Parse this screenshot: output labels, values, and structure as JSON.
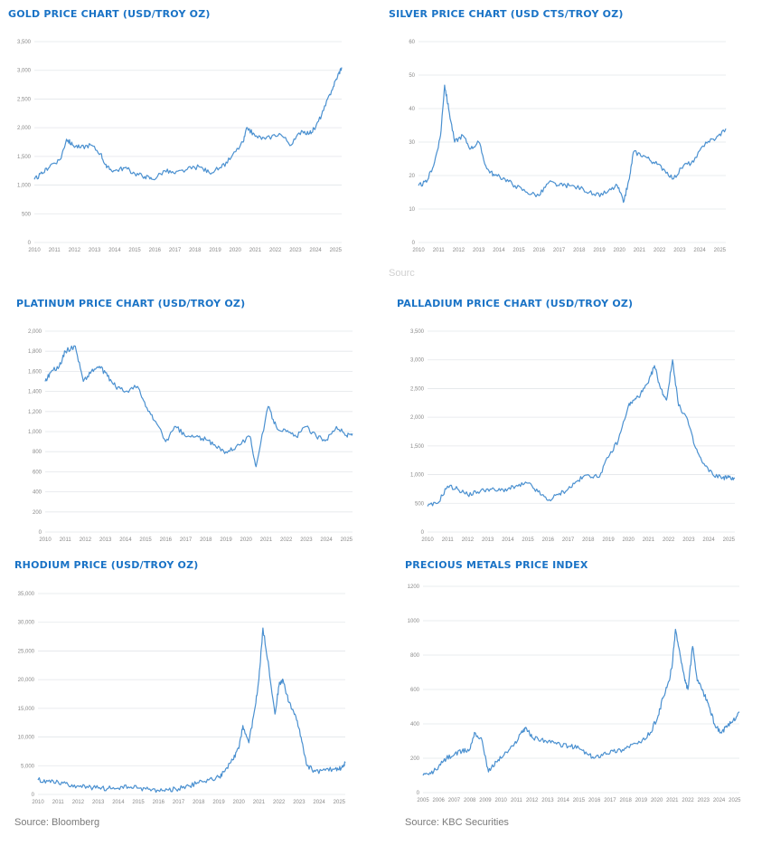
{
  "sources": {
    "left": "Source: Bloomberg",
    "right": "Source: KBC Securities",
    "faded": "Sourc"
  },
  "chart_data": [
    {
      "id": "gold",
      "type": "line",
      "title": "GOLD PRICE CHART (USD/TROY OZ)",
      "ylim": [
        0,
        3500
      ],
      "yticks": [
        0,
        500,
        1000,
        1500,
        2000,
        2500,
        3000,
        3500
      ],
      "ytick_labels": [
        "0",
        "500",
        "1,000",
        "1,500",
        "2,000",
        "2,500",
        "3,000",
        "3,500"
      ],
      "xlim": [
        2010,
        2025.3
      ],
      "xticks": [
        2010,
        2011,
        2012,
        2013,
        2014,
        2015,
        2016,
        2017,
        2018,
        2019,
        2020,
        2021,
        2022,
        2023,
        2024,
        2025
      ],
      "xtick_labels": [
        "2010",
        "2011",
        "2012",
        "2013",
        "2014",
        "2015",
        "2016",
        "2017",
        "2018",
        "2019",
        "2020",
        "2021",
        "2022",
        "2023",
        "2024",
        "2025"
      ],
      "grid": true,
      "x": [
        2010.0,
        2010.4,
        2010.8,
        2011.3,
        2011.6,
        2011.9,
        2012.3,
        2012.8,
        2013.3,
        2013.6,
        2014.0,
        2014.5,
        2015.0,
        2015.5,
        2015.9,
        2016.5,
        2017.0,
        2017.6,
        2018.2,
        2018.7,
        2019.3,
        2019.8,
        2020.4,
        2020.6,
        2021.0,
        2021.5,
        2022.2,
        2022.8,
        2023.3,
        2023.7,
        2024.0,
        2024.4,
        2024.8,
        2025.1,
        2025.3
      ],
      "y": [
        1100,
        1200,
        1350,
        1450,
        1800,
        1700,
        1650,
        1700,
        1550,
        1300,
        1250,
        1300,
        1200,
        1150,
        1100,
        1250,
        1200,
        1270,
        1320,
        1220,
        1300,
        1480,
        1750,
        2000,
        1850,
        1800,
        1900,
        1700,
        1950,
        1900,
        2000,
        2300,
        2650,
        2900,
        3050
      ]
    },
    {
      "id": "silver",
      "type": "line",
      "title": "SILVER PRICE CHART (USD CTS/TROY OZ)",
      "ylim": [
        0,
        60
      ],
      "yticks": [
        0,
        10,
        20,
        30,
        40,
        50,
        60
      ],
      "ytick_labels": [
        "0",
        "10",
        "20",
        "30",
        "40",
        "50",
        "60"
      ],
      "xlim": [
        2010,
        2025.3
      ],
      "xticks": [
        2010,
        2011,
        2012,
        2013,
        2014,
        2015,
        2016,
        2017,
        2018,
        2019,
        2020,
        2021,
        2022,
        2023,
        2024,
        2025
      ],
      "xtick_labels": [
        "2010",
        "2011",
        "2012",
        "2013",
        "2014",
        "2015",
        "2016",
        "2017",
        "2018",
        "2019",
        "2020",
        "2021",
        "2022",
        "2023",
        "2024",
        "2025"
      ],
      "grid": true,
      "x": [
        2010.0,
        2010.4,
        2010.8,
        2011.1,
        2011.3,
        2011.5,
        2011.8,
        2012.2,
        2012.6,
        2013.0,
        2013.4,
        2013.8,
        2014.3,
        2014.8,
        2015.4,
        2016.0,
        2016.5,
        2017.0,
        2017.5,
        2018.2,
        2018.8,
        2019.4,
        2019.9,
        2020.2,
        2020.5,
        2020.7,
        2021.2,
        2021.7,
        2022.2,
        2022.7,
        2023.2,
        2023.7,
        2024.3,
        2024.8,
        2025.3
      ],
      "y": [
        17,
        18,
        24,
        32,
        47,
        40,
        30,
        32,
        28,
        30,
        22,
        20,
        19,
        17,
        15,
        14,
        18,
        17,
        17,
        16,
        14,
        15,
        17,
        12,
        19,
        27,
        26,
        24,
        22,
        19,
        23,
        24,
        30,
        31,
        34
      ]
    },
    {
      "id": "platinum",
      "type": "line",
      "title": "PLATINUM PRICE CHART (USD/TROY OZ)",
      "ylim": [
        0,
        2000
      ],
      "yticks": [
        0,
        200,
        400,
        600,
        800,
        1000,
        1200,
        1400,
        1600,
        1800,
        2000
      ],
      "ytick_labels": [
        "0",
        "200",
        "400",
        "600",
        "800",
        "1,000",
        "1,200",
        "1,400",
        "1,600",
        "1,800",
        "2,000"
      ],
      "xlim": [
        2010,
        2025.3
      ],
      "xticks": [
        2010,
        2011,
        2012,
        2013,
        2014,
        2015,
        2016,
        2017,
        2018,
        2019,
        2020,
        2021,
        2022,
        2023,
        2024,
        2025
      ],
      "xtick_labels": [
        "2010",
        "2011",
        "2012",
        "2013",
        "2014",
        "2015",
        "2016",
        "2017",
        "2018",
        "2019",
        "2020",
        "2021",
        "2022",
        "2023",
        "2024",
        "2025"
      ],
      "grid": true,
      "x": [
        2010.0,
        2010.3,
        2010.7,
        2011.0,
        2011.5,
        2011.9,
        2012.3,
        2012.7,
        2013.1,
        2013.5,
        2014.0,
        2014.6,
        2015.0,
        2015.5,
        2016.0,
        2016.5,
        2017.0,
        2017.5,
        2018.0,
        2018.5,
        2019.0,
        2019.5,
        2020.2,
        2020.5,
        2021.1,
        2021.5,
        2022.0,
        2022.5,
        2023.0,
        2023.5,
        2024.0,
        2024.5,
        2025.0,
        2025.3
      ],
      "y": [
        1500,
        1600,
        1650,
        1800,
        1850,
        1500,
        1600,
        1650,
        1550,
        1450,
        1400,
        1450,
        1250,
        1100,
        900,
        1050,
        950,
        950,
        920,
        850,
        800,
        850,
        950,
        650,
        1250,
        1050,
        1000,
        950,
        1050,
        950,
        920,
        1050,
        960,
        980
      ]
    },
    {
      "id": "palladium",
      "type": "line",
      "title": "PALLADIUM PRICE CHART (USD/TROY OZ)",
      "ylim": [
        0,
        3500
      ],
      "yticks": [
        0,
        500,
        1000,
        1500,
        2000,
        2500,
        3000,
        3500
      ],
      "ytick_labels": [
        "0",
        "500",
        "1,000",
        "1,500",
        "2,000",
        "2,500",
        "3,000",
        "3,500"
      ],
      "xlim": [
        2010,
        2025.3
      ],
      "xticks": [
        2010,
        2011,
        2012,
        2013,
        2014,
        2015,
        2016,
        2017,
        2018,
        2019,
        2020,
        2021,
        2022,
        2023,
        2024,
        2025
      ],
      "xtick_labels": [
        "2010",
        "2011",
        "2012",
        "2013",
        "2014",
        "2015",
        "2016",
        "2017",
        "2018",
        "2019",
        "2020",
        "2021",
        "2022",
        "2023",
        "2024",
        "2025"
      ],
      "grid": true,
      "x": [
        2010.0,
        2010.5,
        2011.0,
        2011.5,
        2012.0,
        2012.5,
        2013.0,
        2013.5,
        2014.0,
        2014.5,
        2015.0,
        2015.5,
        2016.0,
        2016.5,
        2017.0,
        2017.5,
        2018.0,
        2018.5,
        2019.0,
        2019.5,
        2020.0,
        2020.3,
        2020.6,
        2021.0,
        2021.3,
        2021.6,
        2021.9,
        2022.2,
        2022.5,
        2022.9,
        2023.3,
        2023.7,
        2024.2,
        2024.7,
        2025.0,
        2025.3
      ],
      "y": [
        450,
        500,
        800,
        750,
        650,
        700,
        750,
        720,
        750,
        800,
        850,
        700,
        550,
        650,
        750,
        900,
        1000,
        950,
        1300,
        1600,
        2200,
        2300,
        2400,
        2600,
        2900,
        2500,
        2300,
        3000,
        2200,
        2000,
        1500,
        1200,
        1000,
        950,
        950,
        940
      ]
    },
    {
      "id": "rhodium",
      "type": "line",
      "title": "RHODIUM PRICE (USD/TROY OZ)",
      "ylim": [
        0,
        35000
      ],
      "yticks": [
        0,
        5000,
        10000,
        15000,
        20000,
        25000,
        30000,
        35000
      ],
      "ytick_labels": [
        "0",
        "5,000",
        "10,000",
        "15,000",
        "20,000",
        "25,000",
        "30,000",
        "35,000"
      ],
      "xlim": [
        2010,
        2025.3
      ],
      "xticks": [
        2010,
        2011,
        2012,
        2013,
        2014,
        2015,
        2016,
        2017,
        2018,
        2019,
        2020,
        2021,
        2022,
        2023,
        2024,
        2025
      ],
      "xtick_labels": [
        "2010",
        "2011",
        "2012",
        "2013",
        "2014",
        "2015",
        "2016",
        "2017",
        "2018",
        "2019",
        "2020",
        "2021",
        "2022",
        "2023",
        "2024",
        "2025"
      ],
      "grid": true,
      "x": [
        2010.0,
        2010.5,
        2011.0,
        2011.5,
        2012.0,
        2012.5,
        2013.0,
        2013.5,
        2014.0,
        2014.5,
        2015.0,
        2015.5,
        2016.0,
        2016.5,
        2017.0,
        2017.5,
        2018.0,
        2018.5,
        2019.0,
        2019.3,
        2019.7,
        2020.0,
        2020.2,
        2020.5,
        2020.8,
        2021.0,
        2021.2,
        2021.5,
        2021.8,
        2022.0,
        2022.2,
        2022.5,
        2022.8,
        2023.1,
        2023.4,
        2023.8,
        2024.3,
        2024.8,
        2025.1,
        2025.3
      ],
      "y": [
        2500,
        2300,
        2200,
        1700,
        1500,
        1200,
        1100,
        1050,
        1100,
        1300,
        1100,
        900,
        700,
        750,
        1000,
        1500,
        2000,
        2500,
        3000,
        4000,
        6000,
        8000,
        12000,
        9000,
        15000,
        20000,
        29000,
        22000,
        14000,
        19000,
        20000,
        16000,
        14000,
        10000,
        5000,
        4000,
        4200,
        4500,
        4600,
        5500
      ]
    },
    {
      "id": "index",
      "type": "line",
      "title": "PRECIOUS METALS PRICE INDEX",
      "ylim": [
        0,
        1200
      ],
      "yticks": [
        0,
        200,
        400,
        600,
        800,
        1000,
        1200
      ],
      "ytick_labels": [
        "0",
        "200",
        "400",
        "600",
        "800",
        "1000",
        "1200"
      ],
      "xlim": [
        2005,
        2025.3
      ],
      "xticks": [
        2005,
        2006,
        2007,
        2008,
        2009,
        2010,
        2011,
        2012,
        2013,
        2014,
        2015,
        2016,
        2017,
        2018,
        2019,
        2020,
        2021,
        2022,
        2023,
        2024,
        2025
      ],
      "xtick_labels": [
        "2005",
        "2006",
        "2007",
        "2008",
        "2009",
        "2010",
        "2011",
        "2012",
        "2013",
        "2014",
        "2015",
        "2016",
        "2017",
        "2018",
        "2019",
        "2020",
        "2021",
        "2022",
        "2023",
        "2024",
        "2025"
      ],
      "grid": true,
      "x": [
        2005.0,
        2005.5,
        2006.0,
        2006.5,
        2007.0,
        2007.5,
        2008.0,
        2008.3,
        2008.8,
        2009.2,
        2009.7,
        2010.2,
        2010.8,
        2011.3,
        2011.6,
        2012.0,
        2012.6,
        2013.2,
        2013.8,
        2014.4,
        2015.0,
        2015.6,
        2016.0,
        2016.6,
        2017.2,
        2017.8,
        2018.4,
        2019.0,
        2019.6,
        2020.1,
        2020.4,
        2020.8,
        2021.0,
        2021.2,
        2021.5,
        2021.8,
        2022.0,
        2022.3,
        2022.6,
        2023.0,
        2023.3,
        2023.7,
        2024.1,
        2024.5,
        2024.9,
        2025.3
      ],
      "y": [
        100,
        110,
        150,
        200,
        220,
        240,
        250,
        350,
        300,
        120,
        180,
        220,
        270,
        350,
        380,
        320,
        310,
        290,
        280,
        270,
        260,
        220,
        200,
        230,
        240,
        250,
        280,
        290,
        350,
        450,
        550,
        650,
        750,
        950,
        800,
        650,
        600,
        850,
        650,
        580,
        520,
        400,
        350,
        380,
        420,
        470
      ]
    }
  ]
}
